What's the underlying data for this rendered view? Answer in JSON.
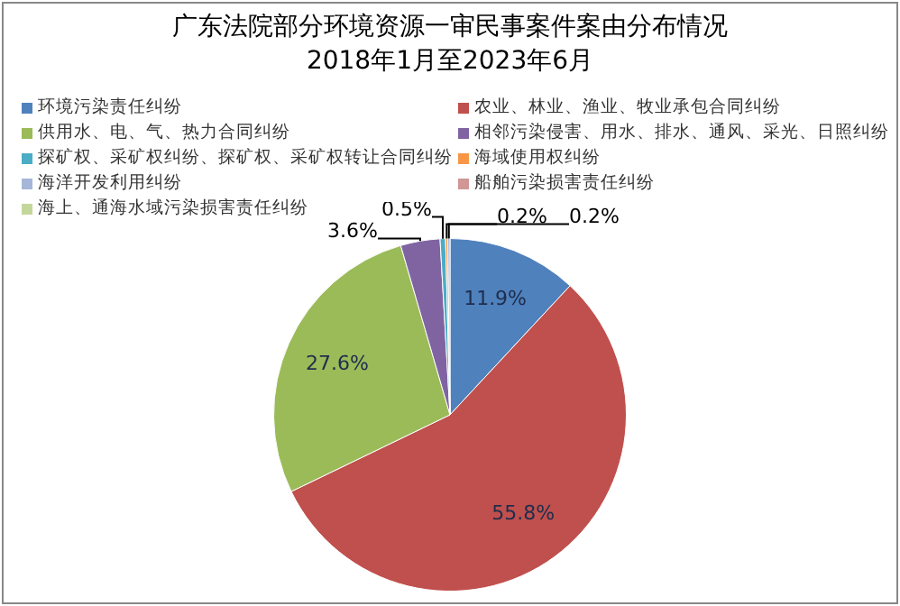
{
  "chart_data": {
    "type": "pie",
    "title": "广东法院部分环境资源一审民事案件案由分布情况",
    "subtitle": "2018年1月至2023年6月",
    "categories": [
      "环境污染责任纠纷",
      "农业、林业、渔业、牧业承包合同纠纷",
      "供用水、电、气、热力合同纠纷",
      "相邻污染侵害、用水、排水、通风、采光、日照纠纷",
      "探矿权、采矿权纠纷、探矿权、采矿权转让合同纠纷",
      "海域使用权纠纷",
      "海洋开发利用纠纷",
      "船舶污染损害责任纠纷",
      "海上、通海水域污染损害责任纠纷"
    ],
    "values": [
      11.9,
      55.8,
      27.6,
      3.6,
      0.5,
      0.2,
      0.2,
      null,
      null
    ],
    "value_labels": [
      "11.9%",
      "55.8%",
      "27.6%",
      "3.6%",
      "0.5%",
      "0.2%",
      "0.2%",
      null,
      null
    ],
    "colors": [
      "#4f81bd",
      "#c0504d",
      "#9bbb59",
      "#8064a2",
      "#4bacc6",
      "#f79646",
      "#a5b6d8",
      "#d19695",
      "#c4d79b"
    ],
    "legend": "top"
  }
}
